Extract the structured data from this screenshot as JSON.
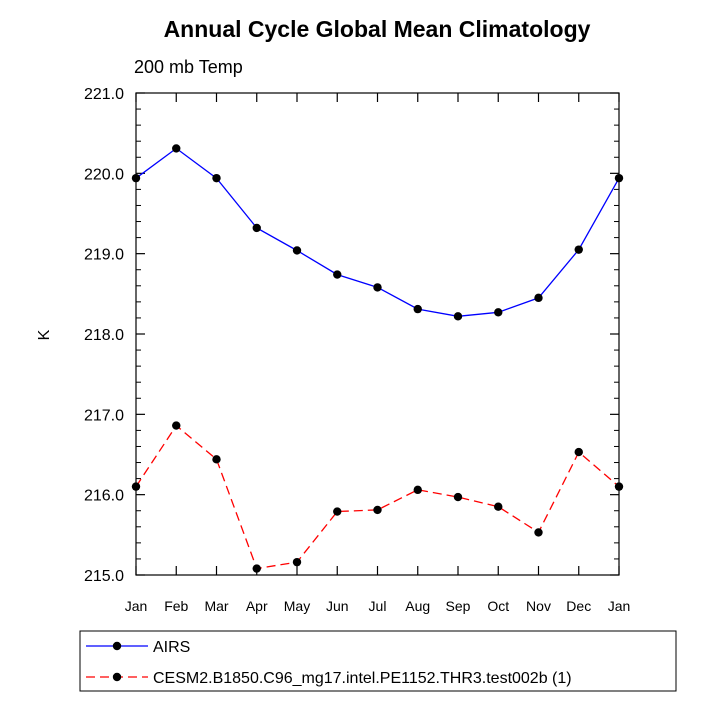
{
  "chart_data": {
    "type": "line",
    "title": "Annual Cycle Global Mean Climatology",
    "subtitle": "200 mb Temp",
    "xlabel": "",
    "ylabel": "K",
    "ylim": [
      215.0,
      221.0
    ],
    "yticks": [
      "215.0",
      "216.0",
      "217.0",
      "218.0",
      "219.0",
      "220.0",
      "221.0"
    ],
    "categories": [
      "Jan",
      "Feb",
      "Mar",
      "Apr",
      "May",
      "Jun",
      "Jul",
      "Aug",
      "Sep",
      "Oct",
      "Nov",
      "Dec",
      "Jan"
    ],
    "legend_position": "bottom",
    "series": [
      {
        "name": "AIRS",
        "color": "#0000ff",
        "dash": "solid",
        "values": [
          219.94,
          220.31,
          219.94,
          219.32,
          219.04,
          218.74,
          218.58,
          218.31,
          218.22,
          218.27,
          218.45,
          219.05,
          219.94
        ]
      },
      {
        "name": "CESM2.B1850.C96_mg17.intel.PE1152.THR3.test002b (1)",
        "color": "#ff0000",
        "dash": "dashed",
        "values": [
          216.1,
          216.86,
          216.44,
          215.08,
          215.16,
          215.79,
          215.81,
          216.06,
          215.97,
          215.85,
          215.53,
          216.53,
          216.1
        ]
      }
    ]
  }
}
